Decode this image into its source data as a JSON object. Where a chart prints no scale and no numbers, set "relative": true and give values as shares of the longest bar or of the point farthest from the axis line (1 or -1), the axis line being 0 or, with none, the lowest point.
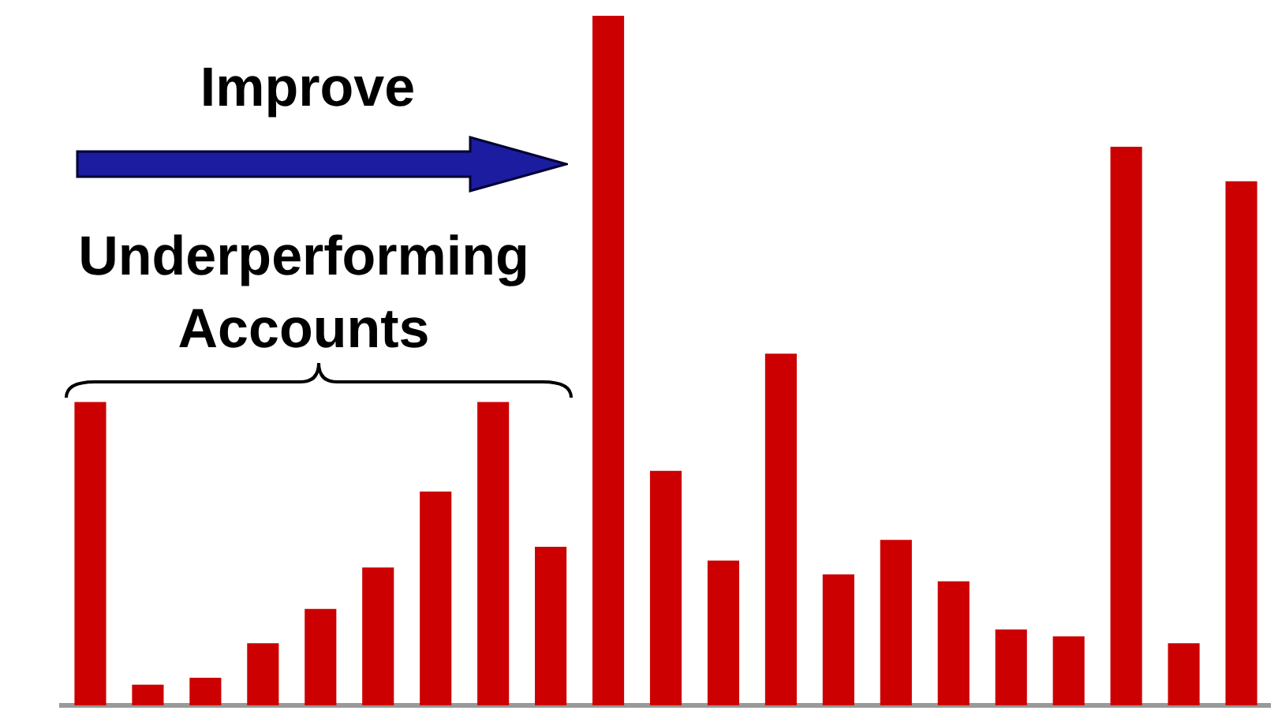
{
  "chart_data": {
    "type": "bar",
    "relative": true,
    "categories": [
      null,
      null,
      null,
      null,
      null,
      null,
      null,
      null,
      null,
      null,
      null,
      null,
      null,
      null,
      null,
      null,
      null,
      null,
      null,
      null,
      null
    ],
    "values": [
      0.44,
      0.03,
      0.04,
      0.09,
      0.14,
      0.2,
      0.31,
      0.44,
      0.23,
      1,
      0.34,
      0.21,
      0.51,
      0.19,
      0.24,
      0.18,
      0.11,
      0.1,
      0.81,
      0.09,
      0.76
    ],
    "color": "#cc0000",
    "annotations": [
      "Improve",
      "Underperforming Accounts"
    ]
  }
}
